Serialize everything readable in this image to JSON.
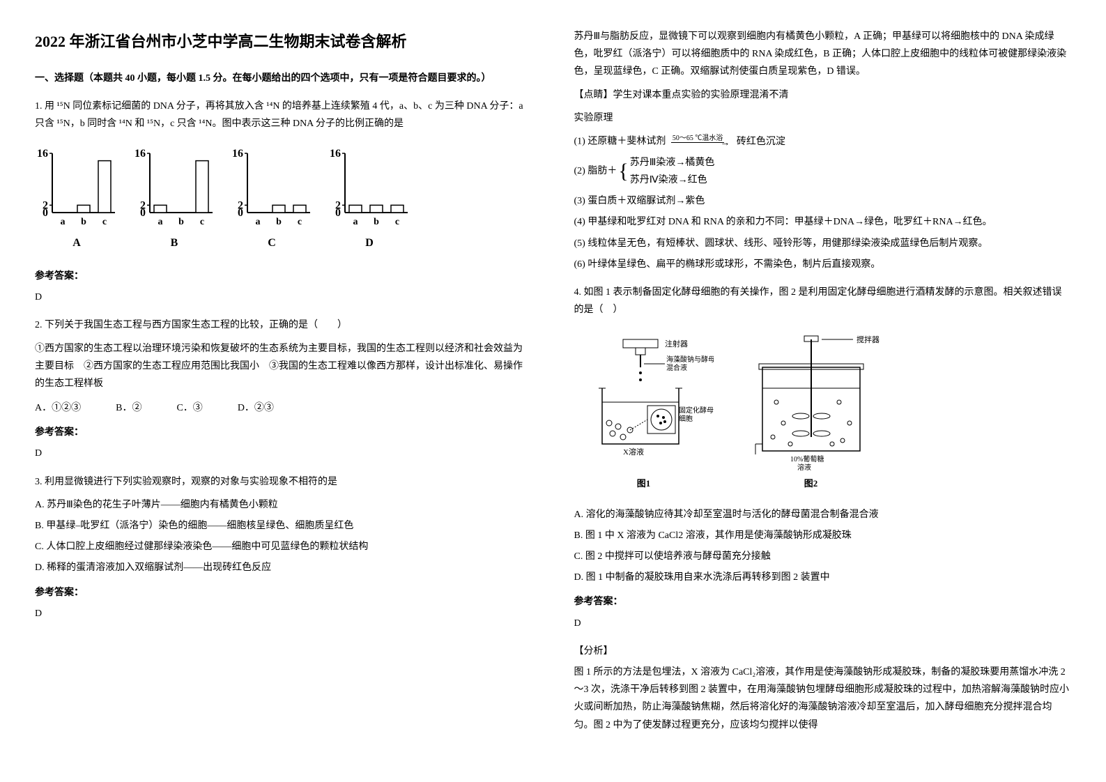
{
  "title": "2022 年浙江省台州市小芝中学高二生物期末试卷含解析",
  "section1_header": "一、选择题（本题共 40 小题，每小题 1.5 分。在每小题给出的四个选项中，只有一项是符合题目要求的。）",
  "q1": {
    "text": "1. 用 ¹⁵N 同位素标记细菌的 DNA 分子，再将其放入含 ¹⁴N 的培养基上连续繁殖 4 代，a、b、c 为三种 DNA 分子：a 只含 ¹⁵N，b 同时含 ¹⁴N 和 ¹⁵N，c 只含 ¹⁴N。图中表示这三种 DNA 分子的比例正确的是",
    "charts": [
      {
        "label": "A",
        "bars": [
          0,
          2,
          14
        ],
        "ylim": 16,
        "categories": [
          "a",
          "b",
          "c"
        ]
      },
      {
        "label": "B",
        "bars": [
          2,
          0,
          14
        ],
        "ylim": 16,
        "categories": [
          "a",
          "b",
          "c"
        ]
      },
      {
        "label": "C",
        "bars": [
          0,
          2,
          2
        ],
        "ylim": 16,
        "categories": [
          "a",
          "b",
          "c"
        ]
      },
      {
        "label": "D",
        "bars": [
          2,
          2,
          2
        ],
        "ylim": 16,
        "categories": [
          "a",
          "b",
          "c"
        ]
      }
    ],
    "answer_label": "参考答案：",
    "answer": "D"
  },
  "q2": {
    "text": "2. 下列关于我国生态工程与西方国家生态工程的比较，正确的是（　　）",
    "sub_text": "①西方国家的生态工程以治理环境污染和恢复破坏的生态系统为主要目标，我国的生态工程则以经济和社会效益为主要目标　②西方国家的生态工程应用范围比我国小　③我国的生态工程难以像西方那样，设计出标准化、易操作的生态工程样板",
    "options": {
      "A": "A．①②③",
      "B": "B．②",
      "C": "C．③",
      "D": "D．②③"
    },
    "answer_label": "参考答案：",
    "answer": "D"
  },
  "q3": {
    "text": "3. 利用显微镜进行下列实验观察时，观察的对象与实验现象不相符的是",
    "options": {
      "A": "A. 苏丹Ⅲ染色的花生子叶薄片——细胞内有橘黄色小颗粒",
      "B": "B. 甲基绿–吡罗红（派洛宁）染色的细胞——细胞核呈绿色、细胞质呈红色",
      "C": "C. 人体口腔上皮细胞经过健那绿染液染色——细胞中可见蓝绿色的颗粒状结构",
      "D": "D. 稀释的蛋清溶液加入双缩脲试剂——出现砖红色反应"
    },
    "answer_label": "参考答案：",
    "answer": "D"
  },
  "right_col": {
    "para1": "苏丹Ⅲ与脂肪反应，显微镜下可以观察到细胞内有橘黄色小颗粒，A 正确；甲基绿可以将细胞核中的 DNA 染成绿色，吡罗红（派洛宁）可以将细胞质中的 RNA 染成红色，B 正确；人体口腔上皮细胞中的线粒体可被健那绿染液染色，呈现蓝绿色，C 正确。双缩脲试剂使蛋白质呈现紫色，D 错误。",
    "dianjing_label": "【点睛】学生对课本重点实验的实验原理混淆不清",
    "shiyan_label": "实验原理",
    "f1": "(1) 还原糖＋斐林试剂",
    "f1_cond": "50～65 ℃温水浴",
    "f1_result": "砖红色沉淀",
    "f2_prefix": "(2) 脂肪＋",
    "f2_line1": "苏丹Ⅲ染液→橘黄色",
    "f2_line2": "苏丹Ⅳ染液→红色",
    "f3": "(3) 蛋白质＋双缩脲试剂→紫色",
    "f4": "(4) 甲基绿和吡罗红对 DNA 和 RNA 的亲和力不同：甲基绿＋DNA→绿色，吡罗红＋RNA→红色。",
    "f5": "(5) 线粒体呈无色，有短棒状、圆球状、线形、哑铃形等，用健那绿染液染成蓝绿色后制片观察。",
    "f6": "(6) 叶绿体呈绿色、扁平的椭球形或球形，不需染色，制片后直接观察。"
  },
  "q4": {
    "text": "4. 如图 1 表示制备固定化酵母细胞的有关操作，图 2 是利用固定化酵母细胞进行酒精发酵的示意图。相关叙述错误的是（　）",
    "diagram1": {
      "label": "图1",
      "syringe_label": "注射器",
      "mix_label": "海藻酸钠与酵母菌混合液",
      "cell_label": "固定化酵母细胞",
      "x_label": "X溶液"
    },
    "diagram2": {
      "label": "图2",
      "stirrer_label": "搅拌器",
      "glucose_label": "10%葡萄糖溶液"
    },
    "options": {
      "A": "A. 溶化的海藻酸钠应待其冷却至室温时与活化的酵母菌混合制备混合液",
      "B": "B. 图 1 中 X 溶液为 CaCl2 溶液，其作用是使海藻酸钠形成凝胶珠",
      "C": "C. 图 2 中搅拌可以使培养液与酵母菌充分接触",
      "D": "D. 图 1 中制备的凝胶珠用自来水洗涤后再转移到图 2 装置中"
    },
    "answer_label": "参考答案：",
    "answer": "D",
    "analysis_label": "【分析】",
    "analysis": "图 1 所示的方法是包埋法，X 溶液为 CaCl₂溶液，其作用是使海藻酸钠形成凝胶珠，制备的凝胶珠要用蒸馏水冲洗 2～3 次，洗涤干净后转移到图 2 装置中，在用海藻酸钠包埋酵母细胞形成凝胶珠的过程中，加热溶解海藻酸钠时应小火或间断加热，防止海藻酸钠焦糊，然后将溶化好的海藻酸钠溶液冷却至室温后，加入酵母细胞充分搅拌混合均匀。图 2 中为了使发酵过程更充分，应该均匀搅拌以使得"
  },
  "chart_style": {
    "bar_color": "#ffffff",
    "bar_stroke": "#000000",
    "axis_color": "#000000",
    "width": 120,
    "height": 120,
    "font_size": 16
  }
}
